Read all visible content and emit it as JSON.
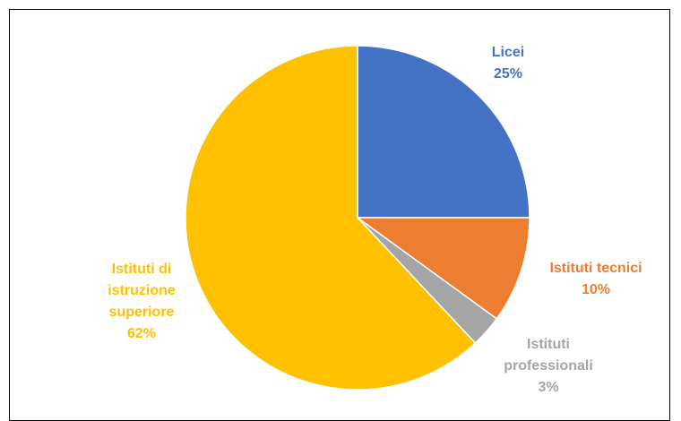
{
  "chart_data": {
    "type": "pie",
    "slices": [
      {
        "label": "Licei",
        "value": 25,
        "percent_label": "25%",
        "color": "#4472C4",
        "label_lines": [
          "Licei",
          "25%"
        ]
      },
      {
        "label": "Istituti tecnici",
        "value": 10,
        "percent_label": "10%",
        "color": "#ED7D31",
        "label_lines": [
          "Istituti tecnici",
          "10%"
        ]
      },
      {
        "label": "Istituti professionali",
        "value": 3,
        "percent_label": "3%",
        "color": "#A5A5A5",
        "label_lines": [
          "Istituti",
          "professionali",
          "3%"
        ]
      },
      {
        "label": "Istituti di istruzione superiore",
        "value": 62,
        "percent_label": "62%",
        "color": "#FFC000",
        "label_lines": [
          "Istituti di",
          "istruzione",
          "superiore",
          "62%"
        ]
      }
    ],
    "start_angle_deg": 0,
    "direction": "clockwise",
    "legend": "none"
  }
}
